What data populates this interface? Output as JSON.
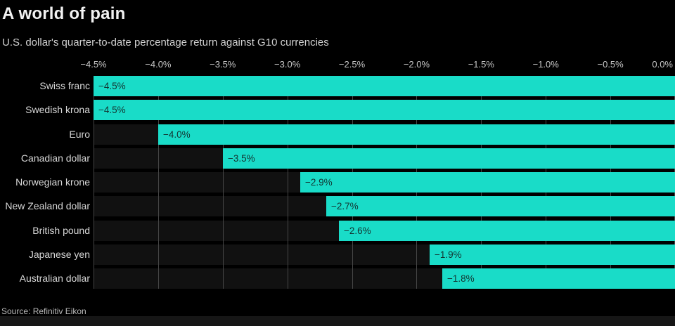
{
  "header": {
    "title": "A world of pain",
    "subtitle": "U.S. dollar's quarter-to-date percentage return against G10 currencies"
  },
  "footer": {
    "source": "Source: Refinitiv Eikon"
  },
  "colors": {
    "background": "#000000",
    "bar": "#19dcc8",
    "row_band": "#111111",
    "gridline": "#464646",
    "title_text": "#f2f2f2",
    "subtitle_text": "#cfcfcf",
    "axis_text": "#c6c6c6",
    "category_text": "#d8d8d8",
    "bar_value_text": "#143431",
    "bottom_strip": "#161616"
  },
  "chart_data": {
    "type": "bar",
    "orientation": "horizontal",
    "title": "A world of pain",
    "subtitle": "U.S. dollar's quarter-to-date percentage return against G10 currencies",
    "xlabel": "",
    "ylabel": "",
    "xlim": [
      -4.5,
      0.0
    ],
    "grid": true,
    "legend": false,
    "x_ticks": [
      "−4.5%",
      "−4.0%",
      "−3.5%",
      "−3.0%",
      "−2.5%",
      "−2.0%",
      "−1.5%",
      "−1.0%",
      "−0.5%",
      "0.0%"
    ],
    "categories": [
      "Swiss franc",
      "Swedish krona",
      "Euro",
      "Canadian dollar",
      "Norwegian krone",
      "New Zealand dollar",
      "British pound",
      "Japanese yen",
      "Australian dollar"
    ],
    "values": [
      -4.5,
      -4.5,
      -4.0,
      -3.5,
      -2.9,
      -2.7,
      -2.6,
      -1.9,
      -1.8
    ],
    "value_labels": [
      "−4.5%",
      "−4.5%",
      "−4.0%",
      "−3.5%",
      "−2.9%",
      "−2.7%",
      "−2.6%",
      "−1.9%",
      "−1.8%"
    ],
    "source": "Source: Refinitiv Eikon"
  }
}
